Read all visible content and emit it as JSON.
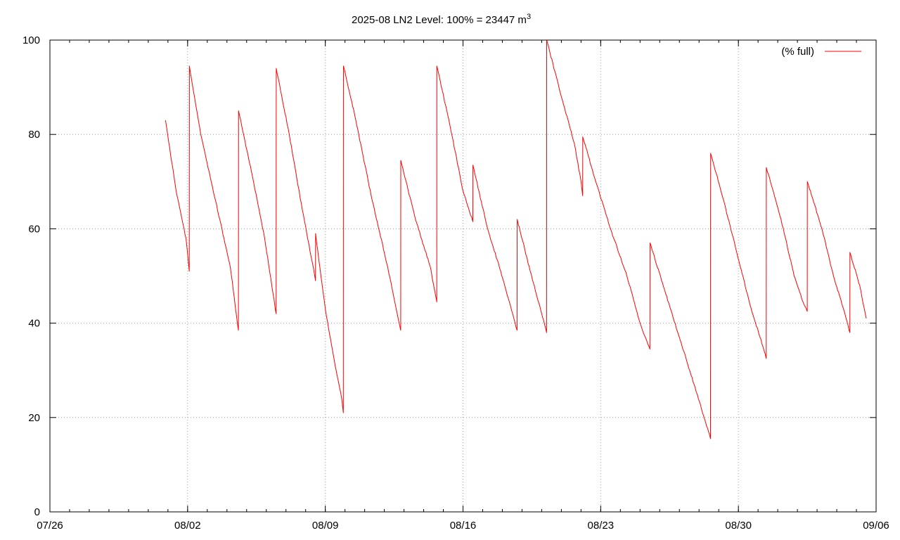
{
  "chart_data": {
    "type": "line",
    "title": "2025-08 LN2 Level: 100% = 23447 m",
    "title_superscript": "3",
    "xlabel": "",
    "ylabel": "",
    "x_axis": {
      "type": "date",
      "min": "2025-07-26",
      "max": "2025-09-06"
    },
    "ylim": [
      0,
      100
    ],
    "x_ticks": [
      "07/26",
      "08/02",
      "08/09",
      "08/16",
      "08/23",
      "08/30",
      "09/06"
    ],
    "y_ticks": [
      "0",
      "20",
      "40",
      "60",
      "80",
      "100"
    ],
    "grid": true,
    "legend": {
      "position": "top-right"
    },
    "series": [
      {
        "name": "(% full)",
        "color": "#ff0000",
        "points": [
          [
            "2025-07-31 21:00",
            83
          ],
          [
            "2025-08-01 10:00",
            68
          ],
          [
            "2025-08-01 22:00",
            58
          ],
          [
            "2025-08-02 02:00",
            51
          ],
          [
            "2025-08-02 02:10",
            94.5
          ],
          [
            "2025-08-02 16:00",
            80
          ],
          [
            "2025-08-03 10:00",
            66
          ],
          [
            "2025-08-04 04:00",
            52
          ],
          [
            "2025-08-04 14:00",
            38.5
          ],
          [
            "2025-08-04 14:10",
            85
          ],
          [
            "2025-08-05 06:00",
            72
          ],
          [
            "2025-08-05 22:00",
            58
          ],
          [
            "2025-08-06 12:00",
            42
          ],
          [
            "2025-08-06 12:05",
            79
          ],
          [
            "2025-08-06 12:10",
            94
          ],
          [
            "2025-08-07 04:00",
            80
          ],
          [
            "2025-08-07 20:00",
            64
          ],
          [
            "2025-08-08 08:00",
            53
          ],
          [
            "2025-08-08 12:00",
            49
          ],
          [
            "2025-08-08 12:05",
            59
          ],
          [
            "2025-08-09 00:00",
            43
          ],
          [
            "2025-08-09 12:00",
            31
          ],
          [
            "2025-08-09 20:00",
            24
          ],
          [
            "2025-08-09 22:00",
            21
          ],
          [
            "2025-08-09 22:05",
            87
          ],
          [
            "2025-08-09 22:10",
            94.5
          ],
          [
            "2025-08-10 12:00",
            84
          ],
          [
            "2025-08-11 08:00",
            67
          ],
          [
            "2025-08-12 04:00",
            52
          ],
          [
            "2025-08-12 20:00",
            38.5
          ],
          [
            "2025-08-12 20:05",
            74.5
          ],
          [
            "2025-08-13 14:00",
            62
          ],
          [
            "2025-08-14 08:00",
            52
          ],
          [
            "2025-08-14 16:00",
            44.5
          ],
          [
            "2025-08-14 16:05",
            94.5
          ],
          [
            "2025-08-15 08:00",
            82
          ],
          [
            "2025-08-16 00:00",
            68
          ],
          [
            "2025-08-16 12:00",
            61.5
          ],
          [
            "2025-08-16 12:05",
            73.5
          ],
          [
            "2025-08-17 06:00",
            60
          ],
          [
            "2025-08-17 22:00",
            51
          ],
          [
            "2025-08-18 14:00",
            41
          ],
          [
            "2025-08-18 18:00",
            38.5
          ],
          [
            "2025-08-18 18:05",
            53
          ],
          [
            "2025-08-18 18:10",
            62
          ],
          [
            "2025-08-19 10:00",
            51
          ],
          [
            "2025-08-20 00:00",
            42
          ],
          [
            "2025-08-20 06:00",
            38
          ],
          [
            "2025-08-20 06:05",
            100
          ],
          [
            "2025-08-21 00:00",
            88
          ],
          [
            "2025-08-21 16:00",
            78
          ],
          [
            "2025-08-22 00:00",
            70
          ],
          [
            "2025-08-22 02:00",
            67
          ],
          [
            "2025-08-22 02:05",
            79.5
          ],
          [
            "2025-08-22 18:00",
            70
          ],
          [
            "2025-08-23 12:00",
            60
          ],
          [
            "2025-08-24 08:00",
            50
          ],
          [
            "2025-08-25 00:00",
            40
          ],
          [
            "2025-08-25 12:00",
            34.5
          ],
          [
            "2025-08-25 12:05",
            45
          ],
          [
            "2025-08-25 12:10",
            57
          ],
          [
            "2025-08-26 06:00",
            47
          ],
          [
            "2025-08-27 00:00",
            37
          ],
          [
            "2025-08-27 18:00",
            27
          ],
          [
            "2025-08-28 08:00",
            19
          ],
          [
            "2025-08-28 14:00",
            15.5
          ],
          [
            "2025-08-28 14:05",
            61
          ],
          [
            "2025-08-28 14:10",
            76
          ],
          [
            "2025-08-29 06:00",
            66
          ],
          [
            "2025-08-29 22:00",
            55
          ],
          [
            "2025-08-30 14:00",
            44
          ],
          [
            "2025-08-31 06:00",
            35
          ],
          [
            "2025-08-31 10:00",
            32.5
          ],
          [
            "2025-08-31 10:05",
            73
          ],
          [
            "2025-09-01 04:00",
            62
          ],
          [
            "2025-09-01 20:00",
            50
          ],
          [
            "2025-09-02 08:00",
            44
          ],
          [
            "2025-09-02 12:00",
            42.5
          ],
          [
            "2025-09-02 12:05",
            70
          ],
          [
            "2025-09-03 06:00",
            60
          ],
          [
            "2025-09-03 20:00",
            50
          ],
          [
            "2025-09-04 10:00",
            42
          ],
          [
            "2025-09-04 16:00",
            38
          ],
          [
            "2025-09-04 16:05",
            55
          ],
          [
            "2025-09-05 04:00",
            48
          ],
          [
            "2025-09-05 12:00",
            41
          ]
        ]
      }
    ]
  }
}
